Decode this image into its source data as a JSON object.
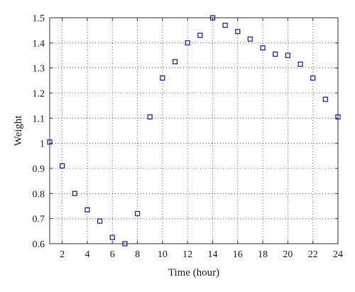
{
  "chart_data": {
    "type": "scatter",
    "xlabel": "Time (hour)",
    "ylabel": "Weight",
    "xlim": [
      1,
      24
    ],
    "ylim": [
      0.6,
      1.5
    ],
    "grid": true,
    "legend": "none",
    "marker": "open-square",
    "x_ticks": [
      2,
      4,
      6,
      8,
      10,
      12,
      14,
      16,
      18,
      20,
      22,
      24
    ],
    "y_ticks": [
      0.6,
      0.7,
      0.8,
      0.9,
      1,
      1.1,
      1.2,
      1.3,
      1.4,
      1.5
    ],
    "series": [
      {
        "color": "#1f2db4",
        "x": [
          1,
          2,
          3,
          4,
          5,
          6,
          7,
          8,
          9,
          10,
          11,
          12,
          13,
          14,
          15,
          16,
          17,
          18,
          19,
          20,
          21,
          22,
          23,
          24
        ],
        "y": [
          1.005,
          0.91,
          0.8,
          0.735,
          0.69,
          0.625,
          0.6,
          0.72,
          1.105,
          1.26,
          1.325,
          1.4,
          1.43,
          1.5,
          1.47,
          1.445,
          1.415,
          1.38,
          1.355,
          1.35,
          1.315,
          1.26,
          1.175,
          1.105
        ]
      }
    ]
  }
}
